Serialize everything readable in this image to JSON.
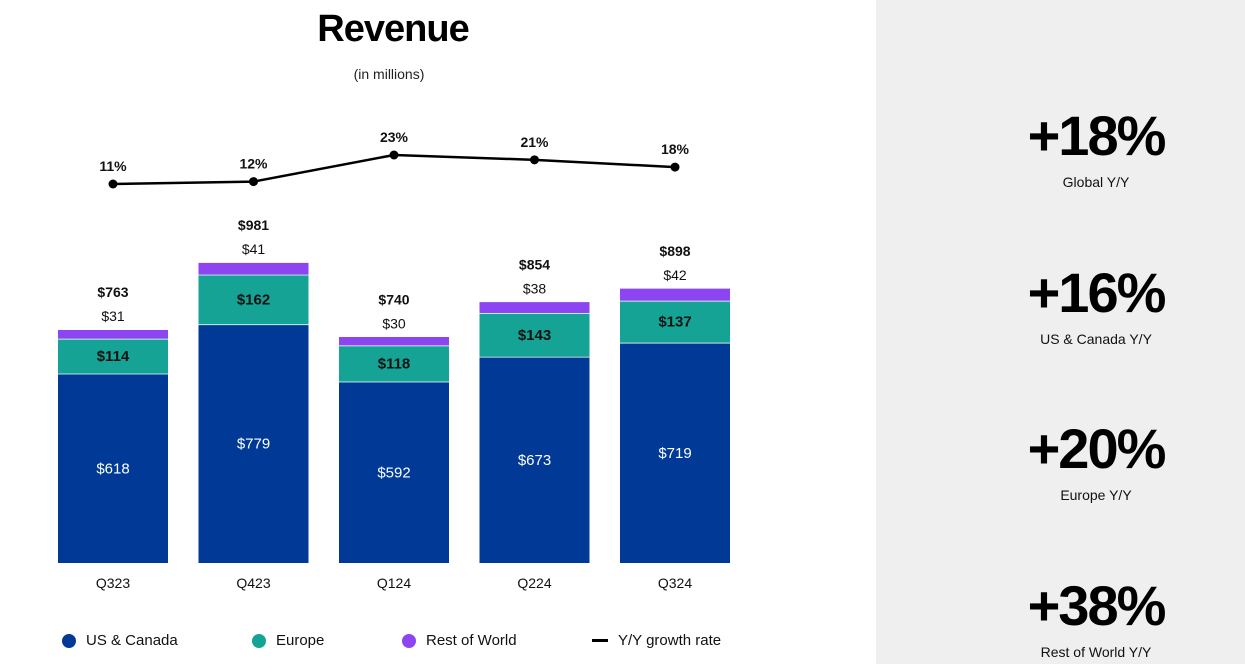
{
  "header": {
    "title": "Revenue",
    "subtitle": "(in millions)"
  },
  "colors": {
    "us_canada": "#003a96",
    "europe": "#14a394",
    "rest_of_world": "#8c45f0",
    "growth_line": "#000000"
  },
  "chart_data": {
    "type": "bar",
    "stacked": true,
    "title": "Revenue",
    "subtitle": "(in millions)",
    "categories": [
      "Q323",
      "Q423",
      "Q124",
      "Q224",
      "Q324"
    ],
    "series": [
      {
        "name": "US & Canada",
        "values": [
          618,
          779,
          592,
          673,
          719
        ],
        "labels": [
          "$618",
          "$779",
          "$592",
          "$673",
          "$719"
        ]
      },
      {
        "name": "Europe",
        "values": [
          114,
          162,
          118,
          143,
          137
        ],
        "labels": [
          "$114",
          "$162",
          "$118",
          "$143",
          "$137"
        ]
      },
      {
        "name": "Rest of World",
        "values": [
          31,
          41,
          30,
          38,
          42
        ],
        "labels": [
          "$31",
          "$41",
          "$30",
          "$38",
          "$42"
        ]
      }
    ],
    "totals": [
      763,
      981,
      740,
      854,
      898
    ],
    "total_labels": [
      "$763",
      "$981",
      "$740",
      "$854",
      "$898"
    ],
    "growth_line": {
      "name": "Y/Y growth rate",
      "type": "line",
      "values": [
        11,
        12,
        23,
        21,
        18
      ],
      "labels": [
        "11%",
        "12%",
        "23%",
        "21%",
        "18%"
      ]
    },
    "legend": [
      "US & Canada",
      "Europe",
      "Rest of World",
      "Y/Y growth rate"
    ]
  },
  "legend": {
    "us_canada": "US & Canada",
    "europe": "Europe",
    "rest_of_world": "Rest of World",
    "growth": "Y/Y growth rate"
  },
  "kpis": [
    {
      "value": "+18%",
      "label": "Global Y/Y"
    },
    {
      "value": "+16%",
      "label": "US & Canada Y/Y"
    },
    {
      "value": "+20%",
      "label": "Europe Y/Y"
    },
    {
      "value": "+38%",
      "label": "Rest of World Y/Y"
    }
  ]
}
